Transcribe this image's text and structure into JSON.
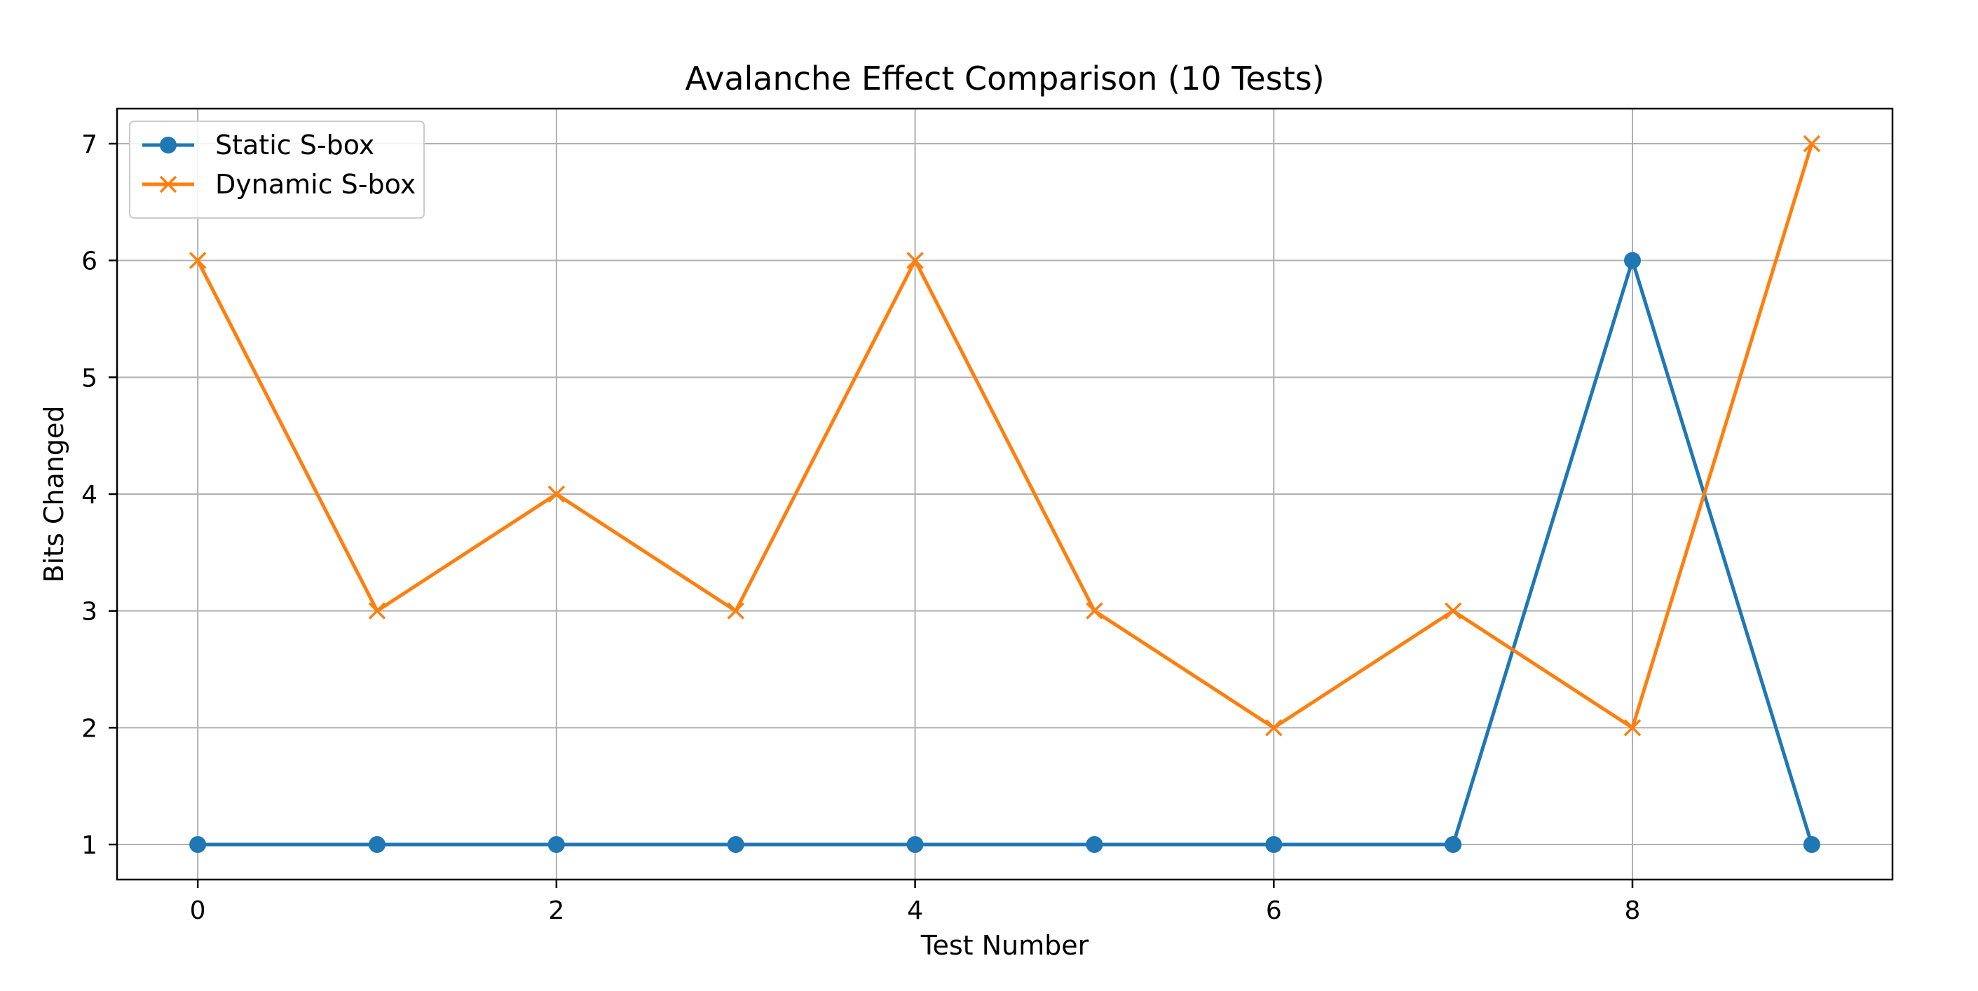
{
  "chart_data": {
    "type": "line",
    "title": "Avalanche Effect Comparison (10 Tests)",
    "xlabel": "Test Number",
    "ylabel": "Bits Changed",
    "x": [
      0,
      1,
      2,
      3,
      4,
      5,
      6,
      7,
      8,
      9
    ],
    "xlim": [
      -0.45,
      9.45
    ],
    "ylim": [
      0.7,
      7.3
    ],
    "xticks": [
      0,
      2,
      4,
      6,
      8
    ],
    "yticks": [
      1,
      2,
      3,
      4,
      5,
      6,
      7
    ],
    "grid": true,
    "legend_position": "upper-left",
    "series": [
      {
        "name": "Static S-box",
        "values": [
          1,
          1,
          1,
          1,
          1,
          1,
          1,
          1,
          6,
          1
        ],
        "color": "#1f77b4",
        "marker": "circle"
      },
      {
        "name": "Dynamic S-box",
        "values": [
          6,
          3,
          4,
          3,
          6,
          3,
          2,
          3,
          2,
          7
        ],
        "color": "#ff7f0e",
        "marker": "x"
      }
    ]
  }
}
